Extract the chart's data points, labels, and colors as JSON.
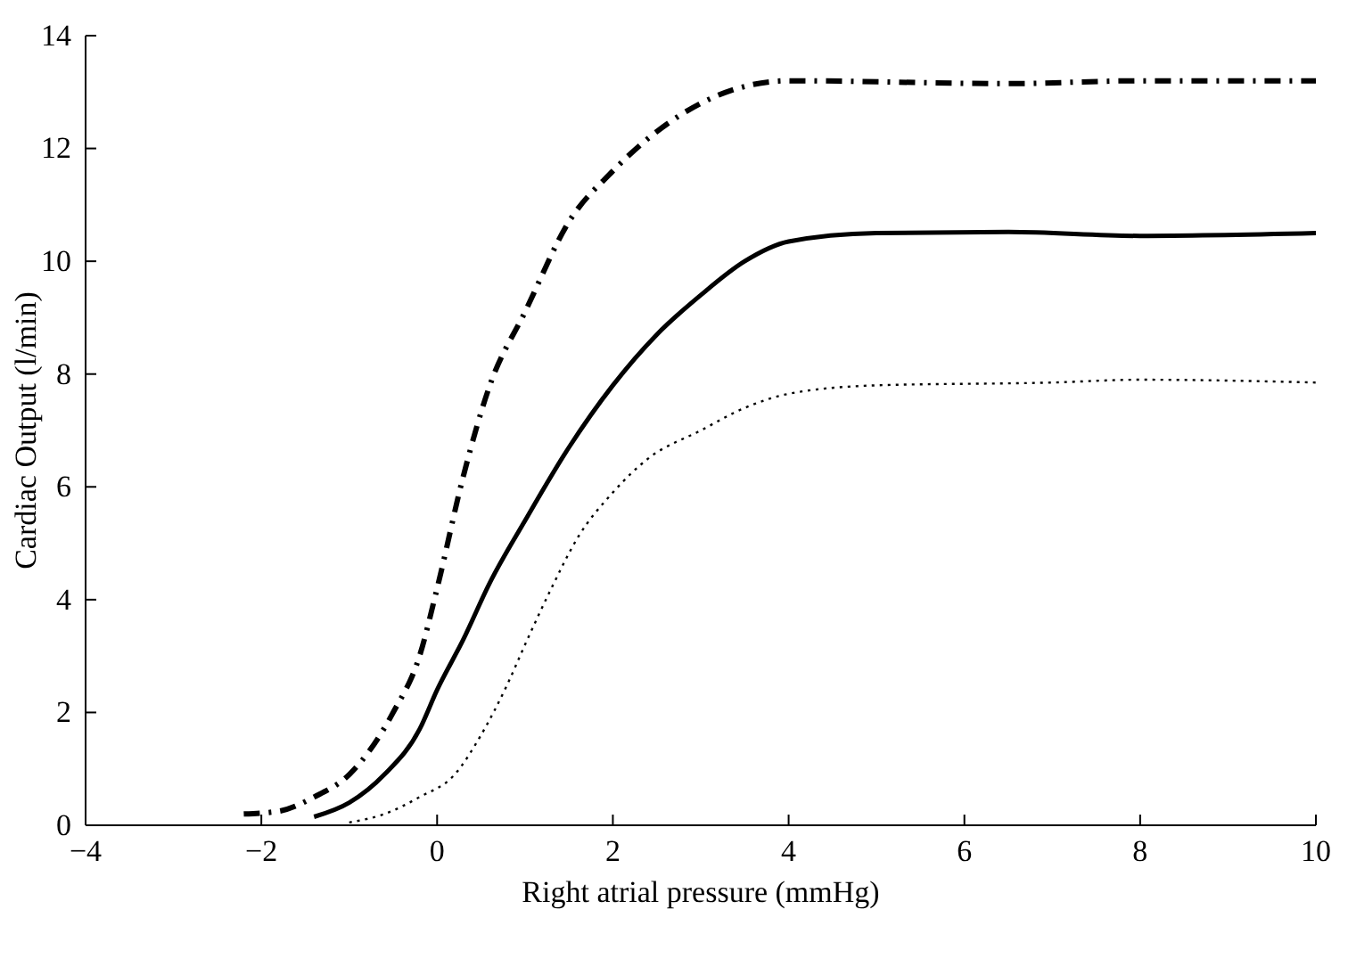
{
  "chart_data": {
    "type": "line",
    "xlabel": "Right atrial pressure (mmHg)",
    "ylabel": "Cardiac Output (l/min)",
    "xlim": [
      -4,
      10
    ],
    "xticks": [
      {
        "value": -4,
        "label": "−4"
      },
      {
        "value": -2,
        "label": "−2"
      },
      0,
      2,
      4,
      6,
      8,
      10
    ],
    "ylim": [
      0,
      14
    ],
    "yticks": [
      0,
      2,
      4,
      6,
      8,
      10,
      12,
      14
    ],
    "marker": "none",
    "series": [
      {
        "color": "#000000",
        "line_style": "dashdot",
        "x": [
          -2.2,
          -1.8,
          -1.4,
          -1,
          -0.5,
          -0.2,
          0,
          0.3,
          0.6,
          1,
          1.5,
          2,
          2.5,
          3,
          3.5,
          4,
          6.5,
          8,
          10
        ],
        "values": [
          0.2,
          0.25,
          0.5,
          0.9,
          2,
          3,
          4.2,
          6.2,
          7.8,
          9.1,
          10.7,
          11.6,
          12.3,
          12.8,
          13.1,
          13.2,
          13.15,
          13.2,
          13.2
        ]
      },
      {
        "color": "#000000",
        "line_style": "solid",
        "x": [
          -1.4,
          -1,
          -0.6,
          -0.2,
          0,
          0.3,
          0.6,
          1,
          1.5,
          2,
          2.5,
          3,
          3.5,
          4,
          5,
          6.5,
          8,
          10
        ],
        "values": [
          0.15,
          0.4,
          0.9,
          1.7,
          2.4,
          3.3,
          4.3,
          5.4,
          6.7,
          7.8,
          8.7,
          9.4,
          10,
          10.35,
          10.5,
          10.52,
          10.45,
          10.5
        ]
      },
      {
        "color": "#000000",
        "line_style": "dotted",
        "x": [
          -1,
          -0.6,
          -0.2,
          0.2,
          0.5,
          0.8,
          1,
          1.3,
          1.6,
          2,
          2.4,
          3,
          3.5,
          4,
          5,
          7,
          8,
          10
        ],
        "values": [
          0.05,
          0.2,
          0.5,
          0.9,
          1.6,
          2.5,
          3.2,
          4.2,
          5.1,
          5.9,
          6.5,
          7,
          7.4,
          7.65,
          7.8,
          7.85,
          7.9,
          7.85
        ]
      }
    ]
  }
}
